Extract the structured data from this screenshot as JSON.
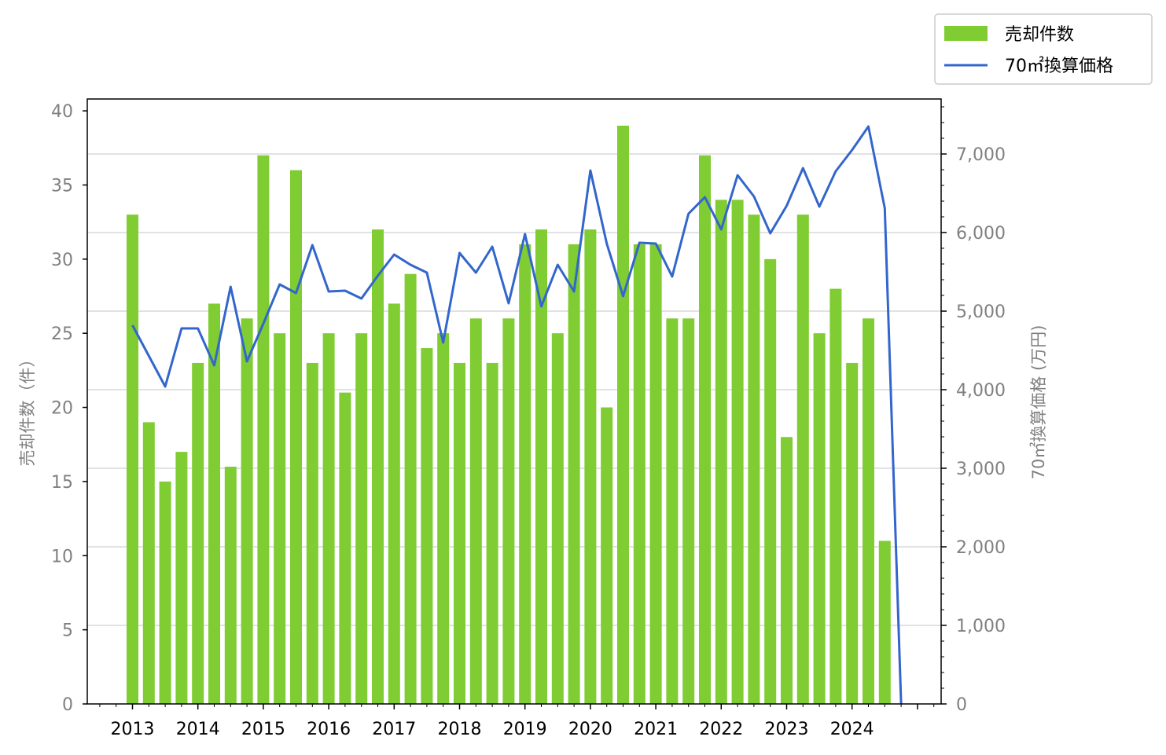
{
  "chart_data": {
    "type": "bar",
    "title": "",
    "xlabel": "",
    "ylabel": "売却件数（件）",
    "y2label": "70㎡換算価格 (万円)",
    "ylim": [
      0,
      40.8
    ],
    "y2lim": [
      0,
      7700
    ],
    "yticks": [
      0,
      5,
      10,
      15,
      20,
      25,
      30,
      35,
      40
    ],
    "y2ticks": [
      0,
      1000,
      2000,
      3000,
      4000,
      5000,
      6000,
      7000
    ],
    "y2ticklabels": [
      "0",
      "1,000",
      "2,000",
      "3,000",
      "4,000",
      "5,000",
      "6,000",
      "7,000"
    ],
    "xticklabels": [
      "2013",
      "2014",
      "2015",
      "2016",
      "2017",
      "2018",
      "2019",
      "2020",
      "2021",
      "2022",
      "2023",
      "2024"
    ],
    "x_start_year": 2013,
    "periods_per_year": 4,
    "grid": "horizontal (right axis)",
    "legend": "top-right, outside plot",
    "colors": {
      "bar": "#7fcc33",
      "line": "#3366cc",
      "grid": "#d9d9d9"
    },
    "series": [
      {
        "name": "売却件数",
        "kind": "bar",
        "axis": "left",
        "values": [
          33,
          19,
          15,
          17,
          23,
          27,
          16,
          26,
          37,
          25,
          36,
          23,
          25,
          21,
          25,
          32,
          27,
          29,
          24,
          25,
          23,
          26,
          23,
          26,
          31,
          32,
          25,
          31,
          32,
          20,
          39,
          31,
          31,
          26,
          26,
          37,
          34,
          34,
          33,
          30,
          18,
          33,
          25,
          28,
          23,
          26,
          11,
          null
        ]
      },
      {
        "name": "70㎡換算価格",
        "kind": "line",
        "axis": "right",
        "values": [
          4820,
          4430,
          4040,
          4780,
          4780,
          4310,
          5310,
          4360,
          4840,
          5340,
          5230,
          5840,
          5250,
          5260,
          5160,
          5450,
          5720,
          5590,
          5490,
          4600,
          5740,
          5490,
          5820,
          5100,
          5980,
          5060,
          5590,
          5250,
          6790,
          5860,
          5190,
          5870,
          5860,
          5440,
          6240,
          6450,
          6040,
          6730,
          6460,
          5990,
          6340,
          6820,
          6330,
          6780,
          7050,
          7350,
          6310,
          0
        ]
      }
    ]
  }
}
